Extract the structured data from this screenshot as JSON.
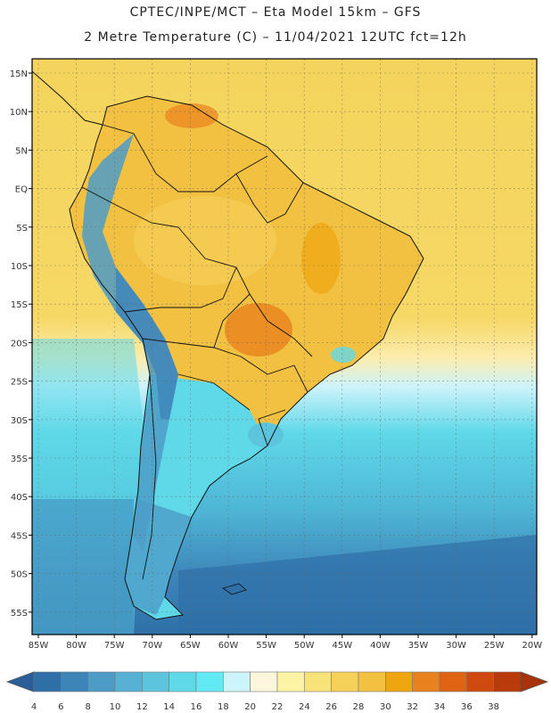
{
  "header": {
    "line1": "CPTEC/INPE/MCT –  Eta Model 15km – GFS",
    "line2": "2 Metre Temperature (C) – 11/04/2021 12UTC fct=12h"
  },
  "map": {
    "lat_labels": [
      "15N",
      "10N",
      "5N",
      "EQ",
      "5S",
      "10S",
      "15S",
      "20S",
      "25S",
      "30S",
      "35S",
      "40S",
      "45S",
      "50S",
      "55S"
    ],
    "lon_labels": [
      "85W",
      "80W",
      "75W",
      "70W",
      "65W",
      "60W",
      "55W",
      "50W",
      "45W",
      "40W",
      "35W",
      "30W",
      "25W",
      "20W"
    ]
  },
  "legend": {
    "values": [
      "4",
      "6",
      "8",
      "10",
      "12",
      "14",
      "16",
      "18",
      "20",
      "22",
      "24",
      "26",
      "28",
      "30",
      "32",
      "34",
      "36",
      "38"
    ],
    "colors": [
      "#2f6fa8",
      "#3d85b9",
      "#4c9cc7",
      "#56b1d4",
      "#5cc4dd",
      "#5fd8e8",
      "#62eaf4",
      "#cdf3fb",
      "#fbf6dc",
      "#fdf3a5",
      "#f8e27a",
      "#f6d15a",
      "#f3c142",
      "#eea50f",
      "#e9821e",
      "#e06314",
      "#cf4a0e",
      "#b93b0b"
    ],
    "arrow_left_color": "#2a5d99",
    "arrow_right_color": "#a8330a"
  }
}
